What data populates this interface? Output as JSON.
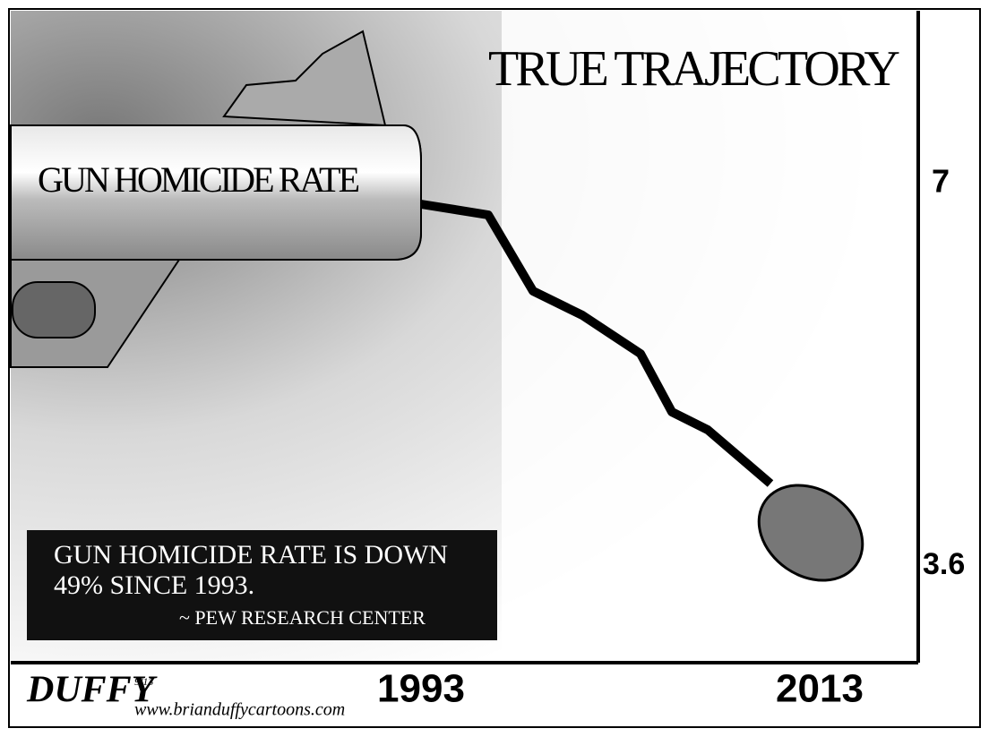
{
  "title": "TRUE TRAJECTORY",
  "gun_label": "GUN HOMICIDE RATE",
  "axis": {
    "top": 7,
    "bottom": 3.6,
    "start": "1993",
    "end": "2013"
  },
  "caption": {
    "lines": [
      "GUN HOMICIDE RATE IS DOWN",
      "49% SINCE 1993."
    ],
    "source": "~ PEW RESEARCH CENTER"
  },
  "signature": {
    "name": "DUFFY",
    "date": "9/13",
    "website": "www.brianduffycartoons.com"
  }
}
